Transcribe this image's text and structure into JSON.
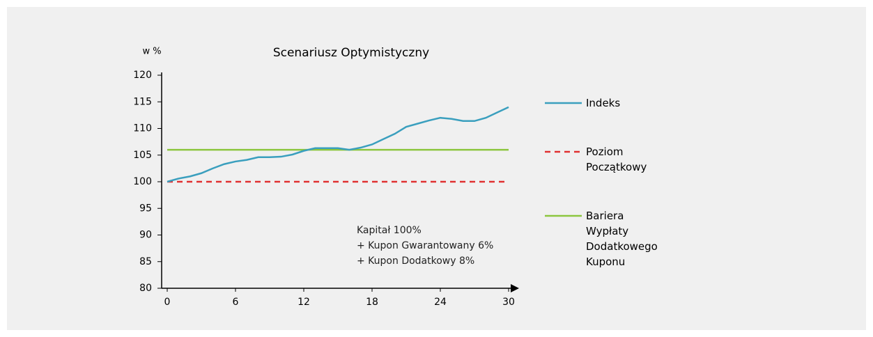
{
  "chart_data": {
    "type": "line",
    "title": "Scenariusz  Optymistyczny",
    "y_label": "w %",
    "annotation": [
      "Kapitał 100%",
      "+ Kupon Gwarantowany 6%",
      "+ Kupon Dodatkowy 8%"
    ],
    "x": [
      0,
      1,
      2,
      3,
      4,
      5,
      6,
      7,
      8,
      9,
      10,
      11,
      12,
      13,
      14,
      15,
      16,
      17,
      18,
      19,
      20,
      21,
      22,
      23,
      24,
      25,
      26,
      27,
      28,
      29,
      30
    ],
    "xlim": [
      0,
      30
    ],
    "xticks": [
      0,
      6,
      12,
      18,
      24,
      30
    ],
    "ylim": [
      80,
      120
    ],
    "yticks": [
      80,
      85,
      90,
      95,
      100,
      105,
      110,
      115,
      120
    ],
    "series": [
      {
        "name": "Indeks",
        "color": "#3a9fbe",
        "dashed": false,
        "values": [
          100,
          100.6,
          101,
          101.6,
          102.5,
          103.3,
          103.8,
          104.1,
          104.6,
          104.6,
          104.7,
          105.1,
          105.8,
          106.3,
          106.3,
          106.3,
          106,
          106.4,
          107,
          108,
          109,
          110.3,
          110.9,
          111.5,
          112,
          111.8,
          111.4,
          111.4,
          112,
          113,
          114
        ]
      },
      {
        "name": "Poziom Początkowy",
        "color": "#e03030",
        "dashed": true,
        "values": [
          100,
          100,
          100,
          100,
          100,
          100,
          100,
          100,
          100,
          100,
          100,
          100,
          100,
          100,
          100,
          100,
          100,
          100,
          100,
          100,
          100,
          100,
          100,
          100,
          100,
          100,
          100,
          100,
          100,
          100,
          100
        ]
      },
      {
        "name": "Bariera Wypłaty Dodatkowego Kuponu",
        "color": "#8cc63e",
        "dashed": false,
        "values": [
          106,
          106,
          106,
          106,
          106,
          106,
          106,
          106,
          106,
          106,
          106,
          106,
          106,
          106,
          106,
          106,
          106,
          106,
          106,
          106,
          106,
          106,
          106,
          106,
          106,
          106,
          106,
          106,
          106,
          106,
          106
        ]
      }
    ]
  }
}
